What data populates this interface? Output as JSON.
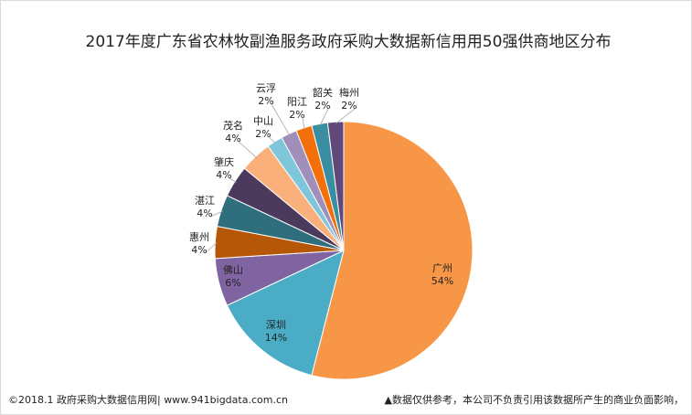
{
  "footer": {
    "left": "©2018.1 政府采购大数据信用网| www.941bigdata.com.cn",
    "right": "▲数据仅供参考，本公司不负责引用该数据所产生的商业负面影响，"
  },
  "chart_data": {
    "type": "pie",
    "title": "2017年度广东省农林牧副渔服务政府采购大数据新信用用50强供商地区分布",
    "slices": [
      {
        "name": "广州",
        "value": 54,
        "label": "54%",
        "color": "#f79646"
      },
      {
        "name": "深圳",
        "value": 14,
        "label": "14%",
        "color": "#4bacc6"
      },
      {
        "name": "佛山",
        "value": 6,
        "label": "6%",
        "color": "#8064a2"
      },
      {
        "name": "惠州",
        "value": 4,
        "label": "4%",
        "color": "#b65708"
      },
      {
        "name": "湛江",
        "value": 4,
        "label": "4%",
        "color": "#2f6e7d"
      },
      {
        "name": "肇庆",
        "value": 4,
        "label": "4%",
        "color": "#4b3a5c"
      },
      {
        "name": "茂名",
        "value": 4,
        "label": "4%",
        "color": "#fab07a"
      },
      {
        "name": "中山",
        "value": 2,
        "label": "2%",
        "color": "#7fc6db"
      },
      {
        "name": "云浮",
        "value": 2,
        "label": "2%",
        "color": "#a08fba"
      },
      {
        "name": "阳江",
        "value": 2,
        "label": "2%",
        "color": "#f36f0a"
      },
      {
        "name": "韶关",
        "value": 2,
        "label": "2%",
        "color": "#3a8ea1"
      },
      {
        "name": "梅州",
        "value": 2,
        "label": "2%",
        "color": "#60497a"
      }
    ]
  }
}
